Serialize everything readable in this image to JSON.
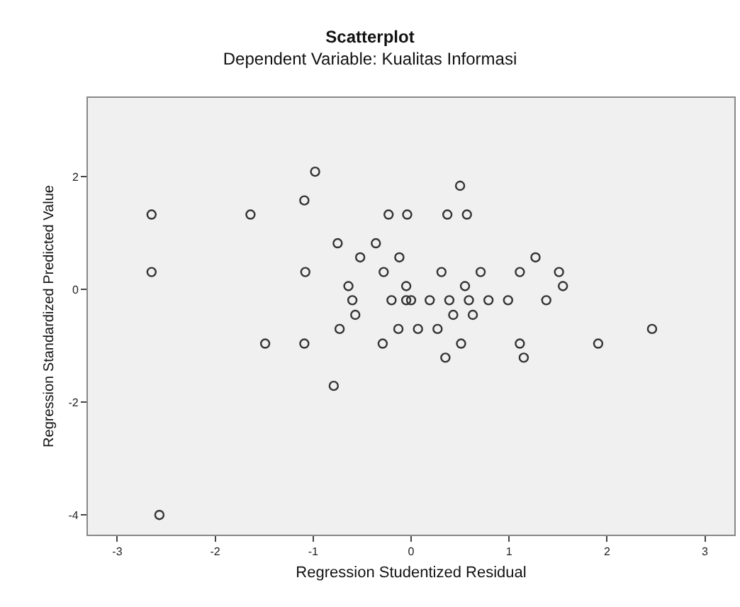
{
  "chart_data": {
    "type": "scatter",
    "title": "Scatterplot",
    "subtitle": "Dependent Variable: Kualitas Informasi",
    "xlabel": "Regression Studentized Residual",
    "ylabel": "Regression Standardized Predicted Value",
    "x": [
      -2.65,
      -2.65,
      -2.57,
      -1.64,
      -0.98,
      -1.09,
      -1.08,
      -1.49,
      -1.09,
      -0.75,
      -0.36,
      -0.52,
      -0.12,
      -0.28,
      -0.23,
      -0.04,
      -0.64,
      -0.6,
      -0.57,
      -0.73,
      -0.29,
      -0.2,
      -0.13,
      -0.79,
      -0.05,
      -0.05,
      0.5,
      0.37,
      0.57,
      1.27,
      0.31,
      0.71,
      1.11,
      1.51,
      1.55,
      0.55,
      0.0,
      0.19,
      0.39,
      0.59,
      0.79,
      0.99,
      1.38,
      0.43,
      0.63,
      0.07,
      0.27,
      2.46,
      0.51,
      1.11,
      1.91,
      0.35,
      1.15
    ],
    "series": [
      {
        "color": "#333333",
        "values": [
          1.33,
          0.31,
          -4.0,
          1.33,
          2.09,
          1.58,
          0.31,
          -0.96,
          -0.96,
          0.82,
          0.82,
          0.57,
          0.57,
          0.31,
          1.33,
          1.33,
          0.06,
          -0.19,
          -0.45,
          -0.7,
          -0.96,
          -0.19,
          -0.7,
          -1.71,
          0.06,
          -0.19,
          1.84,
          1.33,
          1.33,
          0.57,
          0.31,
          0.31,
          0.31,
          0.31,
          0.06,
          0.06,
          -0.19,
          -0.19,
          -0.19,
          -0.19,
          -0.19,
          -0.19,
          -0.19,
          -0.45,
          -0.45,
          -0.7,
          -0.7,
          -0.7,
          -0.96,
          -0.96,
          -0.96,
          -1.21,
          -1.21
        ]
      }
    ],
    "xlim": [
      -3.3,
      3.3
    ],
    "ylim": [
      -4.35,
      3.4
    ],
    "xticks": [
      -3,
      -2,
      -1,
      0,
      1,
      2,
      3
    ],
    "yticks": [
      -4,
      -2,
      0,
      2
    ],
    "marker": "circle",
    "grid": false
  }
}
